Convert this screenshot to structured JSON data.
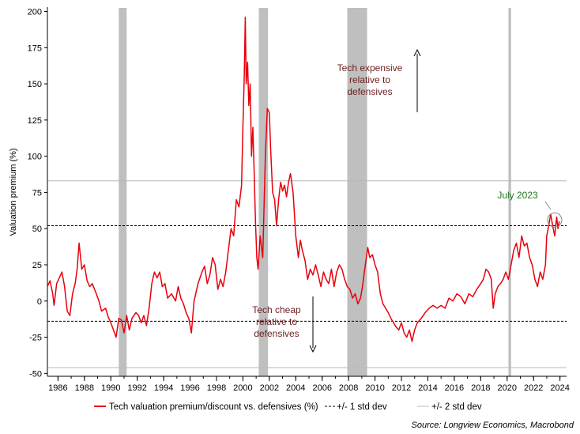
{
  "chart_data": {
    "type": "line",
    "title": "",
    "xlabel": "",
    "ylabel": "Valuation premium (%)",
    "xlim": [
      1985.2,
      2024.5
    ],
    "ylim": [
      -52,
      203
    ],
    "yticks": [
      -50,
      -25,
      0,
      25,
      50,
      75,
      100,
      125,
      150,
      175,
      200
    ],
    "xticks": [
      1986,
      1988,
      1990,
      1992,
      1994,
      1996,
      1998,
      2000,
      2002,
      2004,
      2006,
      2008,
      2010,
      2012,
      2014,
      2016,
      2018,
      2020,
      2022,
      2024
    ],
    "grid": false,
    "legend_position": "bottom",
    "recession_bands": [
      [
        1990.6,
        1991.2
      ],
      [
        2001.2,
        2001.9
      ],
      [
        2007.9,
        2009.4
      ],
      [
        2020.1,
        2020.3
      ]
    ],
    "series": [
      {
        "name": "Tech valuation premium/discount vs. defensives (%)",
        "color": "#e8000b",
        "points": [
          [
            1985.2,
            10
          ],
          [
            1985.4,
            14
          ],
          [
            1985.6,
            5
          ],
          [
            1985.7,
            -3
          ],
          [
            1985.9,
            12
          ],
          [
            1986.1,
            16
          ],
          [
            1986.3,
            20
          ],
          [
            1986.5,
            10
          ],
          [
            1986.7,
            -7
          ],
          [
            1986.9,
            -10
          ],
          [
            1987.1,
            5
          ],
          [
            1987.3,
            12
          ],
          [
            1987.45,
            22
          ],
          [
            1987.6,
            40
          ],
          [
            1987.8,
            22
          ],
          [
            1988.0,
            25
          ],
          [
            1988.2,
            14
          ],
          [
            1988.4,
            10
          ],
          [
            1988.6,
            12
          ],
          [
            1988.9,
            5
          ],
          [
            1989.1,
            0
          ],
          [
            1989.3,
            -7
          ],
          [
            1989.6,
            -5
          ],
          [
            1989.8,
            -11
          ],
          [
            1990.0,
            -15
          ],
          [
            1990.2,
            -20
          ],
          [
            1990.4,
            -25
          ],
          [
            1990.6,
            -12
          ],
          [
            1990.8,
            -13
          ],
          [
            1991.0,
            -22
          ],
          [
            1991.2,
            -10
          ],
          [
            1991.4,
            -20
          ],
          [
            1991.6,
            -12
          ],
          [
            1991.9,
            -8
          ],
          [
            1992.1,
            -10
          ],
          [
            1992.3,
            -15
          ],
          [
            1992.5,
            -10
          ],
          [
            1992.7,
            -17
          ],
          [
            1992.9,
            -5
          ],
          [
            1993.1,
            12
          ],
          [
            1993.3,
            20
          ],
          [
            1993.5,
            16
          ],
          [
            1993.7,
            20
          ],
          [
            1993.9,
            10
          ],
          [
            1994.1,
            12
          ],
          [
            1994.3,
            2
          ],
          [
            1994.6,
            5
          ],
          [
            1994.9,
            0
          ],
          [
            1995.1,
            10
          ],
          [
            1995.3,
            2
          ],
          [
            1995.5,
            -2
          ],
          [
            1995.7,
            -8
          ],
          [
            1995.9,
            -12
          ],
          [
            1996.1,
            -22
          ],
          [
            1996.3,
            0
          ],
          [
            1996.6,
            12
          ],
          [
            1996.9,
            20
          ],
          [
            1997.1,
            24
          ],
          [
            1997.3,
            12
          ],
          [
            1997.5,
            18
          ],
          [
            1997.7,
            30
          ],
          [
            1997.9,
            25
          ],
          [
            1998.1,
            8
          ],
          [
            1998.3,
            15
          ],
          [
            1998.5,
            10
          ],
          [
            1998.7,
            20
          ],
          [
            1998.9,
            35
          ],
          [
            1999.1,
            50
          ],
          [
            1999.3,
            45
          ],
          [
            1999.5,
            70
          ],
          [
            1999.7,
            65
          ],
          [
            1999.9,
            80
          ],
          [
            2000.0,
            120
          ],
          [
            2000.1,
            155
          ],
          [
            2000.18,
            196
          ],
          [
            2000.25,
            150
          ],
          [
            2000.35,
            165
          ],
          [
            2000.45,
            135
          ],
          [
            2000.55,
            150
          ],
          [
            2000.65,
            100
          ],
          [
            2000.75,
            120
          ],
          [
            2000.85,
            90
          ],
          [
            2000.95,
            55
          ],
          [
            2001.05,
            30
          ],
          [
            2001.15,
            22
          ],
          [
            2001.3,
            45
          ],
          [
            2001.5,
            30
          ],
          [
            2001.7,
            100
          ],
          [
            2001.85,
            133
          ],
          [
            2002.0,
            130
          ],
          [
            2002.1,
            105
          ],
          [
            2002.25,
            75
          ],
          [
            2002.4,
            70
          ],
          [
            2002.55,
            52
          ],
          [
            2002.7,
            70
          ],
          [
            2002.85,
            82
          ],
          [
            2003.0,
            76
          ],
          [
            2003.15,
            80
          ],
          [
            2003.3,
            72
          ],
          [
            2003.45,
            82
          ],
          [
            2003.6,
            88
          ],
          [
            2003.8,
            75
          ],
          [
            2004.0,
            45
          ],
          [
            2004.2,
            30
          ],
          [
            2004.35,
            42
          ],
          [
            2004.5,
            35
          ],
          [
            2004.7,
            28
          ],
          [
            2004.9,
            15
          ],
          [
            2005.1,
            22
          ],
          [
            2005.3,
            18
          ],
          [
            2005.5,
            25
          ],
          [
            2005.7,
            18
          ],
          [
            2005.9,
            10
          ],
          [
            2006.1,
            20
          ],
          [
            2006.3,
            15
          ],
          [
            2006.5,
            12
          ],
          [
            2006.7,
            22
          ],
          [
            2006.9,
            10
          ],
          [
            2007.1,
            20
          ],
          [
            2007.3,
            25
          ],
          [
            2007.5,
            22
          ],
          [
            2007.7,
            15
          ],
          [
            2007.9,
            10
          ],
          [
            2008.1,
            8
          ],
          [
            2008.3,
            2
          ],
          [
            2008.5,
            5
          ],
          [
            2008.7,
            -2
          ],
          [
            2008.9,
            2
          ],
          [
            2009.05,
            10
          ],
          [
            2009.25,
            24
          ],
          [
            2009.45,
            37
          ],
          [
            2009.6,
            30
          ],
          [
            2009.8,
            32
          ],
          [
            2010.0,
            25
          ],
          [
            2010.2,
            20
          ],
          [
            2010.4,
            5
          ],
          [
            2010.6,
            -2
          ],
          [
            2010.8,
            -5
          ],
          [
            2011.0,
            -8
          ],
          [
            2011.2,
            -12
          ],
          [
            2011.4,
            -15
          ],
          [
            2011.6,
            -18
          ],
          [
            2011.8,
            -20
          ],
          [
            2012.0,
            -15
          ],
          [
            2012.2,
            -22
          ],
          [
            2012.4,
            -25
          ],
          [
            2012.6,
            -20
          ],
          [
            2012.8,
            -28
          ],
          [
            2013.0,
            -20
          ],
          [
            2013.2,
            -15
          ],
          [
            2013.5,
            -12
          ],
          [
            2013.8,
            -8
          ],
          [
            2014.1,
            -5
          ],
          [
            2014.4,
            -3
          ],
          [
            2014.7,
            -5
          ],
          [
            2015.0,
            -3
          ],
          [
            2015.3,
            -5
          ],
          [
            2015.6,
            2
          ],
          [
            2015.9,
            0
          ],
          [
            2016.2,
            5
          ],
          [
            2016.5,
            3
          ],
          [
            2016.8,
            -2
          ],
          [
            2017.1,
            5
          ],
          [
            2017.4,
            3
          ],
          [
            2017.7,
            8
          ],
          [
            2018.0,
            12
          ],
          [
            2018.2,
            15
          ],
          [
            2018.4,
            22
          ],
          [
            2018.6,
            20
          ],
          [
            2018.8,
            15
          ],
          [
            2018.95,
            -5
          ],
          [
            2019.1,
            5
          ],
          [
            2019.3,
            10
          ],
          [
            2019.5,
            12
          ],
          [
            2019.7,
            15
          ],
          [
            2019.9,
            20
          ],
          [
            2020.1,
            15
          ],
          [
            2020.3,
            25
          ],
          [
            2020.5,
            35
          ],
          [
            2020.7,
            40
          ],
          [
            2020.9,
            30
          ],
          [
            2021.1,
            45
          ],
          [
            2021.3,
            38
          ],
          [
            2021.5,
            40
          ],
          [
            2021.7,
            30
          ],
          [
            2021.9,
            25
          ],
          [
            2022.1,
            15
          ],
          [
            2022.3,
            10
          ],
          [
            2022.5,
            20
          ],
          [
            2022.7,
            15
          ],
          [
            2022.9,
            25
          ],
          [
            2023.0,
            45
          ],
          [
            2023.15,
            52
          ],
          [
            2023.3,
            60
          ],
          [
            2023.45,
            52
          ],
          [
            2023.6,
            45
          ],
          [
            2023.75,
            58
          ],
          [
            2023.85,
            50
          ],
          [
            2023.95,
            55
          ]
        ]
      },
      {
        "name": "+/- 1 std dev",
        "style": "dashed",
        "color": "#000000",
        "values": [
          52,
          -14
        ]
      },
      {
        "name": "+/- 2 std dev",
        "style": "solid",
        "color": "#b8b8b8",
        "values": [
          83,
          -46
        ]
      }
    ],
    "annotations": {
      "expensive": [
        "Tech expensive",
        "relative to",
        "defensives"
      ],
      "cheap": [
        "Tech cheap",
        "relative to",
        "defensives"
      ],
      "july": "July 2023",
      "expensive_color": "#6b1f1f",
      "cheap_color": "#6b1f1f",
      "july_color": "#1a7a1a",
      "july_point": [
        2023.6,
        56
      ]
    },
    "source": "Source: Longview Economics, Macrobond"
  }
}
